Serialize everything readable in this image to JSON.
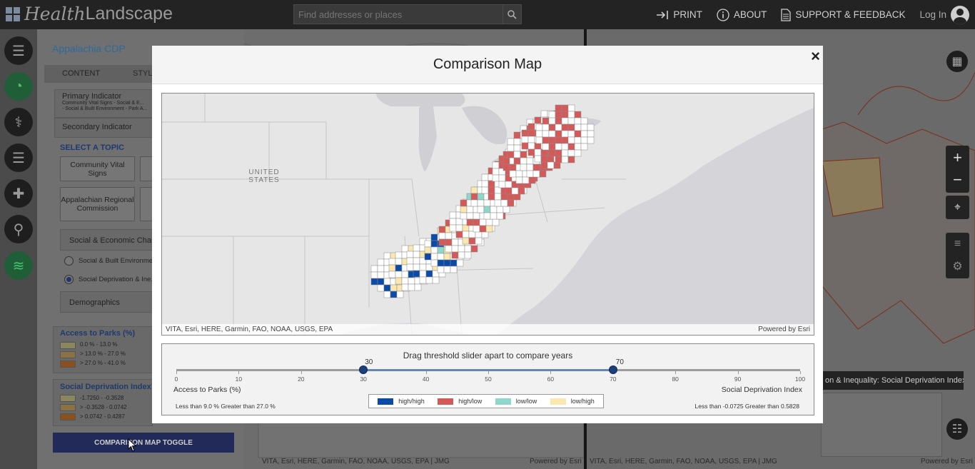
{
  "header": {
    "brand_part1": "Health",
    "brand_part2": "Landscape",
    "search_placeholder": "Find addresses or places",
    "nav": {
      "print": "PRINT",
      "about": "ABOUT",
      "support": "SUPPORT & FEEDBACK",
      "login": "Log In"
    }
  },
  "left_panel": {
    "title": "Appalachia CDP",
    "tabs": [
      "CONTENT",
      "STYLE"
    ],
    "primary_indicator_label": "Primary Indicator",
    "primary_indicator_lines": [
      "Community Vital Signs - Social & E...",
      "- Social & Built Environment - Park A..."
    ],
    "secondary_indicator_label": "Secondary Indicator",
    "select_topic_label": "SELECT A TOPIC",
    "topic_buttons": [
      "Community Vital Signs",
      "Appalachian Regional Commission"
    ],
    "category_social": "Social & Economic Char...",
    "radio_options": [
      "Social & Built Environme...",
      "Social Deprivation & Ine..."
    ],
    "category_demographics": "Demographics",
    "legend_parks_title": "Access to Parks (%)",
    "legend_parks": [
      "0.0 % - 13.0 %",
      "> 13.0 % - 27.0 %",
      "> 27.0 % - 41.0 %"
    ],
    "legend_sdi_title": "Social Deprivation Index",
    "legend_sdi": [
      "-1.7250 - -0.3528",
      "> -0.3528 - 0.0742",
      "> 0.0742 - 0.4287"
    ],
    "toggle_button": "COMPARISON MAP TOGGLE"
  },
  "background": {
    "tooltip": "on & Inequality: Social Deprivation Index",
    "attribution_left": "VITA, Esri, HERE, Garmin, FAO, NOAA, USGS, EPA | JMG",
    "attribution_right": "Powered by Esri"
  },
  "modal": {
    "title": "Comparison Map",
    "close_symbol": "×",
    "map": {
      "country_label_line1": "UNITED",
      "country_label_line2": "STATES",
      "attribution": "VITA, Esri, HERE, Garmin, FAO, NOAA, USGS, EPA",
      "powered_by": "Powered by Esri"
    },
    "slider": {
      "caption": "Drag threshold slider apart to compare years",
      "min": 0,
      "max": 100,
      "low_value": 30,
      "high_value": 70,
      "ticks": [
        0,
        10,
        20,
        30,
        40,
        50,
        60,
        70,
        80,
        90,
        100
      ],
      "left_indicator": "Access to Parks (%)",
      "right_indicator": "Social Deprivation Index",
      "left_range": "Less than 9.0 %   Greater than 27.0 %",
      "right_range": "Less than -0.0725   Greater than 0.5828"
    },
    "legend": [
      {
        "label": "high/high",
        "color": "#0b4aa6"
      },
      {
        "label": "high/low",
        "color": "#d45a5a"
      },
      {
        "label": "low/low",
        "color": "#8fd6cc"
      },
      {
        "label": "low/high",
        "color": "#fbe8ae"
      }
    ]
  },
  "colors": {
    "high_high": "#0b4aa6",
    "high_low": "#d45a5a",
    "low_low": "#8fd6cc",
    "low_high": "#fbe8ae",
    "slider_handle": "#1d3f78"
  }
}
